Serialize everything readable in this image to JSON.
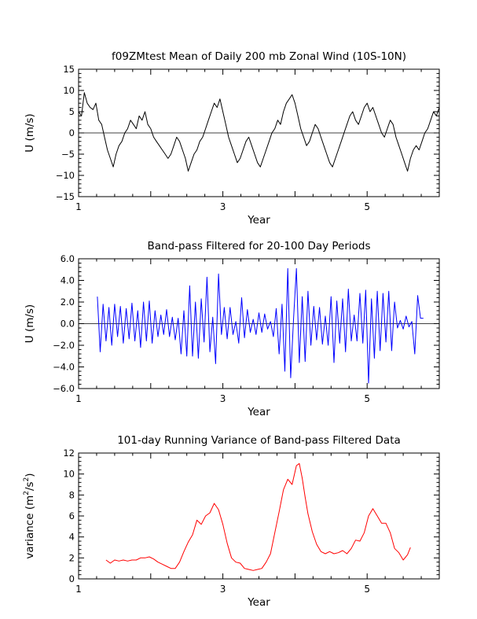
{
  "chart_data": [
    {
      "type": "line",
      "title": "f09ZMtest Mean of Daily 200 mb Zonal Wind (10S-10N)",
      "xlabel": "Year",
      "ylabel": "U (m/s)",
      "xlim": [
        1,
        6
      ],
      "ylim": [
        -15,
        15
      ],
      "xticks": [
        1,
        3,
        5
      ],
      "yticks": [
        -15,
        -10,
        -5,
        0,
        5,
        10,
        15
      ],
      "ytick_labels": [
        "−15",
        "−10",
        "−5",
        "0",
        "5",
        "10",
        "15"
      ],
      "zero_line": true,
      "color": "#000000",
      "series": [
        {
          "name": "U",
          "x": [
            1.0,
            1.04,
            1.08,
            1.12,
            1.16,
            1.2,
            1.24,
            1.28,
            1.32,
            1.36,
            1.4,
            1.44,
            1.48,
            1.52,
            1.56,
            1.6,
            1.64,
            1.68,
            1.72,
            1.76,
            1.8,
            1.84,
            1.88,
            1.92,
            1.96,
            2.0,
            2.04,
            2.08,
            2.12,
            2.16,
            2.2,
            2.24,
            2.28,
            2.32,
            2.36,
            2.4,
            2.44,
            2.48,
            2.52,
            2.56,
            2.6,
            2.64,
            2.68,
            2.72,
            2.76,
            2.8,
            2.84,
            2.88,
            2.92,
            2.96,
            3.0,
            3.04,
            3.08,
            3.12,
            3.16,
            3.2,
            3.24,
            3.28,
            3.32,
            3.36,
            3.4,
            3.44,
            3.48,
            3.52,
            3.56,
            3.6,
            3.64,
            3.68,
            3.72,
            3.76,
            3.8,
            3.84,
            3.88,
            3.92,
            3.96,
            4.0,
            4.04,
            4.08,
            4.12,
            4.16,
            4.2,
            4.24,
            4.28,
            4.32,
            4.36,
            4.4,
            4.44,
            4.48,
            4.52,
            4.56,
            4.6,
            4.64,
            4.68,
            4.72,
            4.76,
            4.8,
            4.84,
            4.88,
            4.92,
            4.96,
            5.0,
            5.04,
            5.08,
            5.12,
            5.16,
            5.2,
            5.24,
            5.28,
            5.32,
            5.36,
            5.4,
            5.44,
            5.48,
            5.52,
            5.56,
            5.6,
            5.64,
            5.68,
            5.72,
            5.76,
            5.8,
            5.84,
            5.88,
            5.92,
            5.96,
            6.0
          ],
          "values": [
            5,
            4,
            9.5,
            7,
            6,
            5.5,
            7,
            3,
            2,
            -1,
            -4,
            -6,
            -8,
            -5,
            -3,
            -2,
            0,
            1,
            3,
            2,
            1,
            4,
            3,
            5,
            2,
            1,
            -1,
            -2,
            -3,
            -4,
            -5,
            -6,
            -5,
            -3,
            -1,
            -2,
            -4,
            -6,
            -9,
            -7,
            -5,
            -4,
            -2,
            -1,
            1,
            3,
            5,
            7,
            6,
            8,
            5,
            2,
            -1,
            -3,
            -5,
            -7,
            -6,
            -4,
            -2,
            -1,
            -3,
            -5,
            -7,
            -8,
            -6,
            -4,
            -2,
            0,
            1,
            3,
            2,
            5,
            7,
            8,
            9,
            7,
            4,
            1,
            -1,
            -3,
            -2,
            0,
            2,
            1,
            -1,
            -3,
            -5,
            -7,
            -8,
            -6,
            -4,
            -2,
            0,
            2,
            4,
            5,
            3,
            2,
            4,
            6,
            7,
            5,
            6,
            4,
            2,
            0,
            -1,
            1,
            3,
            2,
            -1,
            -3,
            -5,
            -7,
            -9,
            -6,
            -4,
            -3,
            -4,
            -2,
            0,
            1,
            3,
            5,
            4,
            6
          ]
        }
      ]
    },
    {
      "type": "line",
      "title": "Band-pass Filtered for 20-100 Day Periods",
      "xlabel": "Year",
      "ylabel": "U (m/s)",
      "xlim": [
        1,
        6
      ],
      "ylim": [
        -6,
        6
      ],
      "xticks": [
        1,
        3,
        5
      ],
      "yticks": [
        -6,
        -4,
        -2,
        0,
        2,
        4,
        6
      ],
      "ytick_labels": [
        "−6.0",
        "−4.0",
        "−2.0",
        "0.0",
        "2.0",
        "4.0",
        "6.0"
      ],
      "zero_line": true,
      "color": "#0000ff",
      "series": [
        {
          "name": "Filtered U",
          "x": [
            1.26,
            1.3,
            1.34,
            1.38,
            1.42,
            1.46,
            1.5,
            1.54,
            1.58,
            1.62,
            1.66,
            1.7,
            1.74,
            1.78,
            1.82,
            1.86,
            1.9,
            1.94,
            1.98,
            2.02,
            2.06,
            2.1,
            2.14,
            2.18,
            2.22,
            2.26,
            2.3,
            2.34,
            2.38,
            2.42,
            2.46,
            2.5,
            2.54,
            2.58,
            2.62,
            2.66,
            2.7,
            2.74,
            2.78,
            2.82,
            2.86,
            2.9,
            2.94,
            2.98,
            3.02,
            3.06,
            3.1,
            3.14,
            3.18,
            3.22,
            3.26,
            3.3,
            3.34,
            3.38,
            3.42,
            3.46,
            3.5,
            3.54,
            3.58,
            3.62,
            3.66,
            3.7,
            3.74,
            3.78,
            3.82,
            3.86,
            3.9,
            3.94,
            3.98,
            4.02,
            4.06,
            4.1,
            4.14,
            4.18,
            4.22,
            4.26,
            4.3,
            4.34,
            4.38,
            4.42,
            4.46,
            4.5,
            4.54,
            4.58,
            4.62,
            4.66,
            4.7,
            4.74,
            4.78,
            4.82,
            4.86,
            4.9,
            4.94,
            4.98,
            5.02,
            5.06,
            5.1,
            5.14,
            5.18,
            5.22,
            5.26,
            5.3,
            5.34,
            5.38,
            5.42,
            5.46,
            5.5,
            5.54,
            5.58,
            5.62,
            5.66,
            5.7,
            5.74,
            5.78
          ],
          "values": [
            2.5,
            -2.6,
            1.8,
            -1.6,
            1.5,
            -2,
            1.8,
            -1.2,
            1.6,
            -1.8,
            1.4,
            -1.4,
            1.9,
            -1.6,
            1.2,
            -2.2,
            2.0,
            -1.6,
            2.1,
            -1.8,
            1.2,
            -1.2,
            0.8,
            -1.0,
            1.3,
            -1.2,
            0.6,
            -1.5,
            0.5,
            -2.8,
            1.2,
            -3.0,
            3.5,
            -3.0,
            2.0,
            -3.2,
            2.3,
            -1.7,
            4.3,
            -2.6,
            0.6,
            -3.7,
            4.6,
            -1.0,
            1.5,
            -1.4,
            1.5,
            -1.0,
            0.2,
            -1.8,
            2.4,
            -1.3,
            1.3,
            -0.8,
            0.4,
            -1.0,
            1.0,
            -0.8,
            0.9,
            -0.5,
            0.2,
            -1.2,
            1.4,
            -2.8,
            1.8,
            -4.4,
            5.1,
            -5.0,
            0.5,
            5.1,
            -3.6,
            2.5,
            -3.5,
            3.0,
            -2.0,
            1.6,
            -1.5,
            1.5,
            -1.9,
            0.7,
            -2.0,
            2.5,
            -3.6,
            2.1,
            -1.8,
            2.3,
            -2.6,
            3.2,
            -1.6,
            0.8,
            -1.6,
            2.8,
            -1.8,
            3.1,
            -5.5,
            2.3,
            -3.2,
            3.0,
            -2.5,
            2.8,
            -1.7,
            3.0,
            -2.5,
            2.0,
            -0.4,
            0.3,
            -0.5,
            0.7,
            -0.3,
            0.2,
            -2.8,
            2.6,
            0.5,
            0.5
          ]
        }
      ]
    },
    {
      "type": "line",
      "title": "101-day Running Variance of Band-pass Filtered Data",
      "xlabel": "Year",
      "ylabel": "variance (m²/s²)",
      "ylabel_parts": [
        "variance (m",
        "2",
        "/s",
        "2",
        ")"
      ],
      "xlim": [
        1,
        6
      ],
      "ylim": [
        0,
        12
      ],
      "xticks": [
        1,
        3,
        5
      ],
      "yticks": [
        0,
        2,
        4,
        6,
        8,
        10,
        12
      ],
      "ytick_labels": [
        "0",
        "2",
        "4",
        "6",
        "8",
        "10",
        "12"
      ],
      "zero_line": false,
      "color": "#ff0000",
      "series": [
        {
          "name": "Variance",
          "x": [
            1.38,
            1.44,
            1.5,
            1.56,
            1.62,
            1.68,
            1.74,
            1.8,
            1.86,
            1.92,
            1.98,
            2.04,
            2.1,
            2.16,
            2.22,
            2.28,
            2.34,
            2.4,
            2.46,
            2.52,
            2.58,
            2.64,
            2.7,
            2.76,
            2.82,
            2.88,
            2.94,
            3.0,
            3.06,
            3.12,
            3.18,
            3.24,
            3.3,
            3.36,
            3.42,
            3.48,
            3.54,
            3.6,
            3.66,
            3.72,
            3.78,
            3.84,
            3.9,
            3.96,
            4.02,
            4.06,
            4.1,
            4.14,
            4.18,
            4.24,
            4.3,
            4.36,
            4.42,
            4.48,
            4.54,
            4.6,
            4.66,
            4.72,
            4.78,
            4.84,
            4.9,
            4.96,
            5.02,
            5.08,
            5.14,
            5.2,
            5.26,
            5.32,
            5.38,
            5.44,
            5.5,
            5.56,
            5.6
          ],
          "values": [
            1.8,
            1.5,
            1.8,
            1.7,
            1.8,
            1.7,
            1.8,
            1.8,
            2.0,
            2.0,
            2.1,
            1.9,
            1.6,
            1.4,
            1.2,
            1.0,
            1.0,
            1.6,
            2.6,
            3.5,
            4.2,
            5.6,
            5.2,
            6.0,
            6.3,
            7.2,
            6.6,
            5.2,
            3.4,
            2.0,
            1.6,
            1.5,
            1.0,
            0.9,
            0.8,
            0.9,
            1.0,
            1.6,
            2.4,
            4.4,
            6.4,
            8.5,
            9.5,
            9.0,
            10.8,
            11.0,
            9.6,
            7.8,
            6.2,
            4.5,
            3.3,
            2.6,
            2.4,
            2.6,
            2.4,
            2.5,
            2.7,
            2.4,
            2.9,
            3.7,
            3.6,
            4.4,
            6.0,
            6.7,
            6.0,
            5.3,
            5.3,
            4.4,
            2.9,
            2.5,
            1.8,
            2.3,
            3.0
          ]
        }
      ]
    }
  ]
}
